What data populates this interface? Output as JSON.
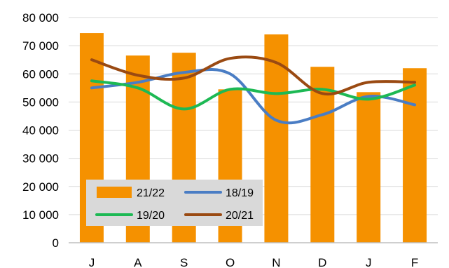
{
  "chart_data": {
    "type": "bar",
    "categories": [
      "J",
      "A",
      "S",
      "O",
      "N",
      "D",
      "J",
      "F"
    ],
    "ylim": [
      0,
      80000
    ],
    "yticks": [
      0,
      10000,
      20000,
      30000,
      40000,
      50000,
      60000,
      70000,
      80000
    ],
    "ytick_labels": [
      "0",
      "10 000",
      "20 000",
      "30 000",
      "40 000",
      "50 000",
      "60 000",
      "70 000",
      "80 000"
    ],
    "grid": true,
    "legend_position": "bottom-left",
    "bar_series": {
      "name": "21/22",
      "color": "#F59100",
      "values": [
        74500,
        66500,
        67500,
        54500,
        74000,
        62500,
        53500,
        62000
      ]
    },
    "line_series": [
      {
        "name": "18/19",
        "color": "#4A7DC4",
        "values": [
          55000,
          57000,
          60500,
          60000,
          43500,
          45500,
          52000,
          49000
        ]
      },
      {
        "name": "19/20",
        "color": "#1DB954",
        "values": [
          57500,
          55000,
          47500,
          54500,
          53000,
          54500,
          51000,
          56000
        ]
      },
      {
        "name": "20/21",
        "color": "#9A4A12",
        "values": [
          65000,
          59500,
          58500,
          65500,
          64000,
          53000,
          57000,
          57000
        ]
      }
    ]
  }
}
